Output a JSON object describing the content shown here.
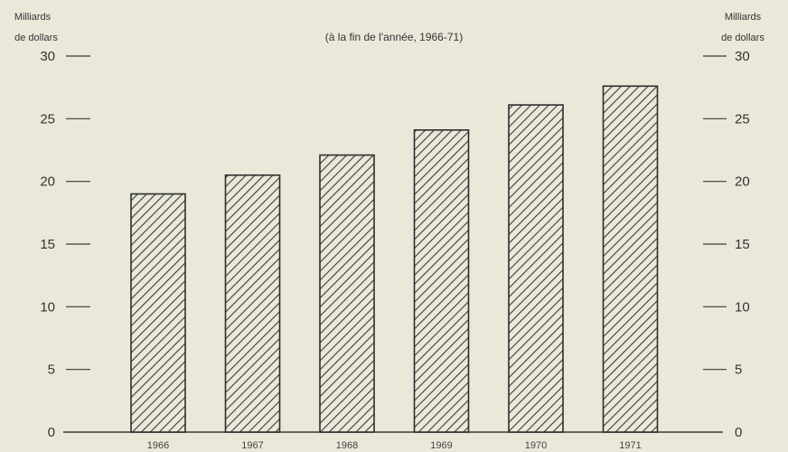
{
  "chart_data": {
    "type": "bar",
    "subtitle": "(à la fin de l'année, 1966-71)",
    "ylabel_left": [
      "Milliards",
      "de dollars"
    ],
    "ylabel_right": [
      "Milliards",
      "de dollars"
    ],
    "categories": [
      "1966",
      "1967",
      "1968",
      "1969",
      "1970",
      "1971"
    ],
    "values": [
      19.0,
      20.5,
      22.1,
      24.1,
      26.1,
      27.6
    ],
    "ylim": [
      0,
      30
    ],
    "yticks": [
      0,
      5,
      10,
      15,
      20,
      25,
      30
    ],
    "grid": false,
    "bar_pattern": "diagonal-hatch",
    "colors": {
      "background": "#e9e8d9",
      "ink": "#333333",
      "bar_fill": "#e9e8d9"
    }
  }
}
